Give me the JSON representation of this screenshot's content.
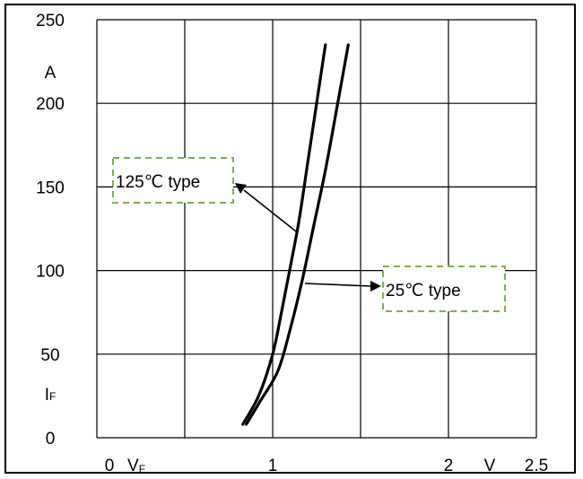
{
  "chart_data": {
    "type": "line",
    "xlim": [
      0,
      2.5
    ],
    "ylim": [
      0,
      250
    ],
    "x_ticks": [
      "0",
      "1",
      "2",
      "2.5"
    ],
    "y_ticks": [
      "0",
      "50",
      "100",
      "150",
      "200",
      "250"
    ],
    "x_unit": "V",
    "y_unit": "A",
    "x_symbol": "V",
    "x_symbol_sub": "F",
    "y_symbol": "I",
    "y_symbol_sub": "F",
    "grid": true,
    "series": [
      {
        "name": "125℃ type",
        "x": [
          0.83,
          0.92,
          1.0,
          1.05,
          1.1,
          1.15,
          1.2,
          1.25,
          1.3
        ],
        "y": [
          8,
          25,
          50,
          75,
          102,
          130,
          165,
          200,
          235
        ]
      },
      {
        "name": "25℃ type",
        "x": [
          0.85,
          0.93,
          1.03,
          1.1,
          1.17,
          1.23,
          1.3,
          1.37,
          1.43
        ],
        "y": [
          8,
          22,
          40,
          65,
          95,
          125,
          160,
          200,
          235
        ]
      }
    ],
    "annotations": [
      "125℃ type",
      "25℃ type"
    ]
  }
}
